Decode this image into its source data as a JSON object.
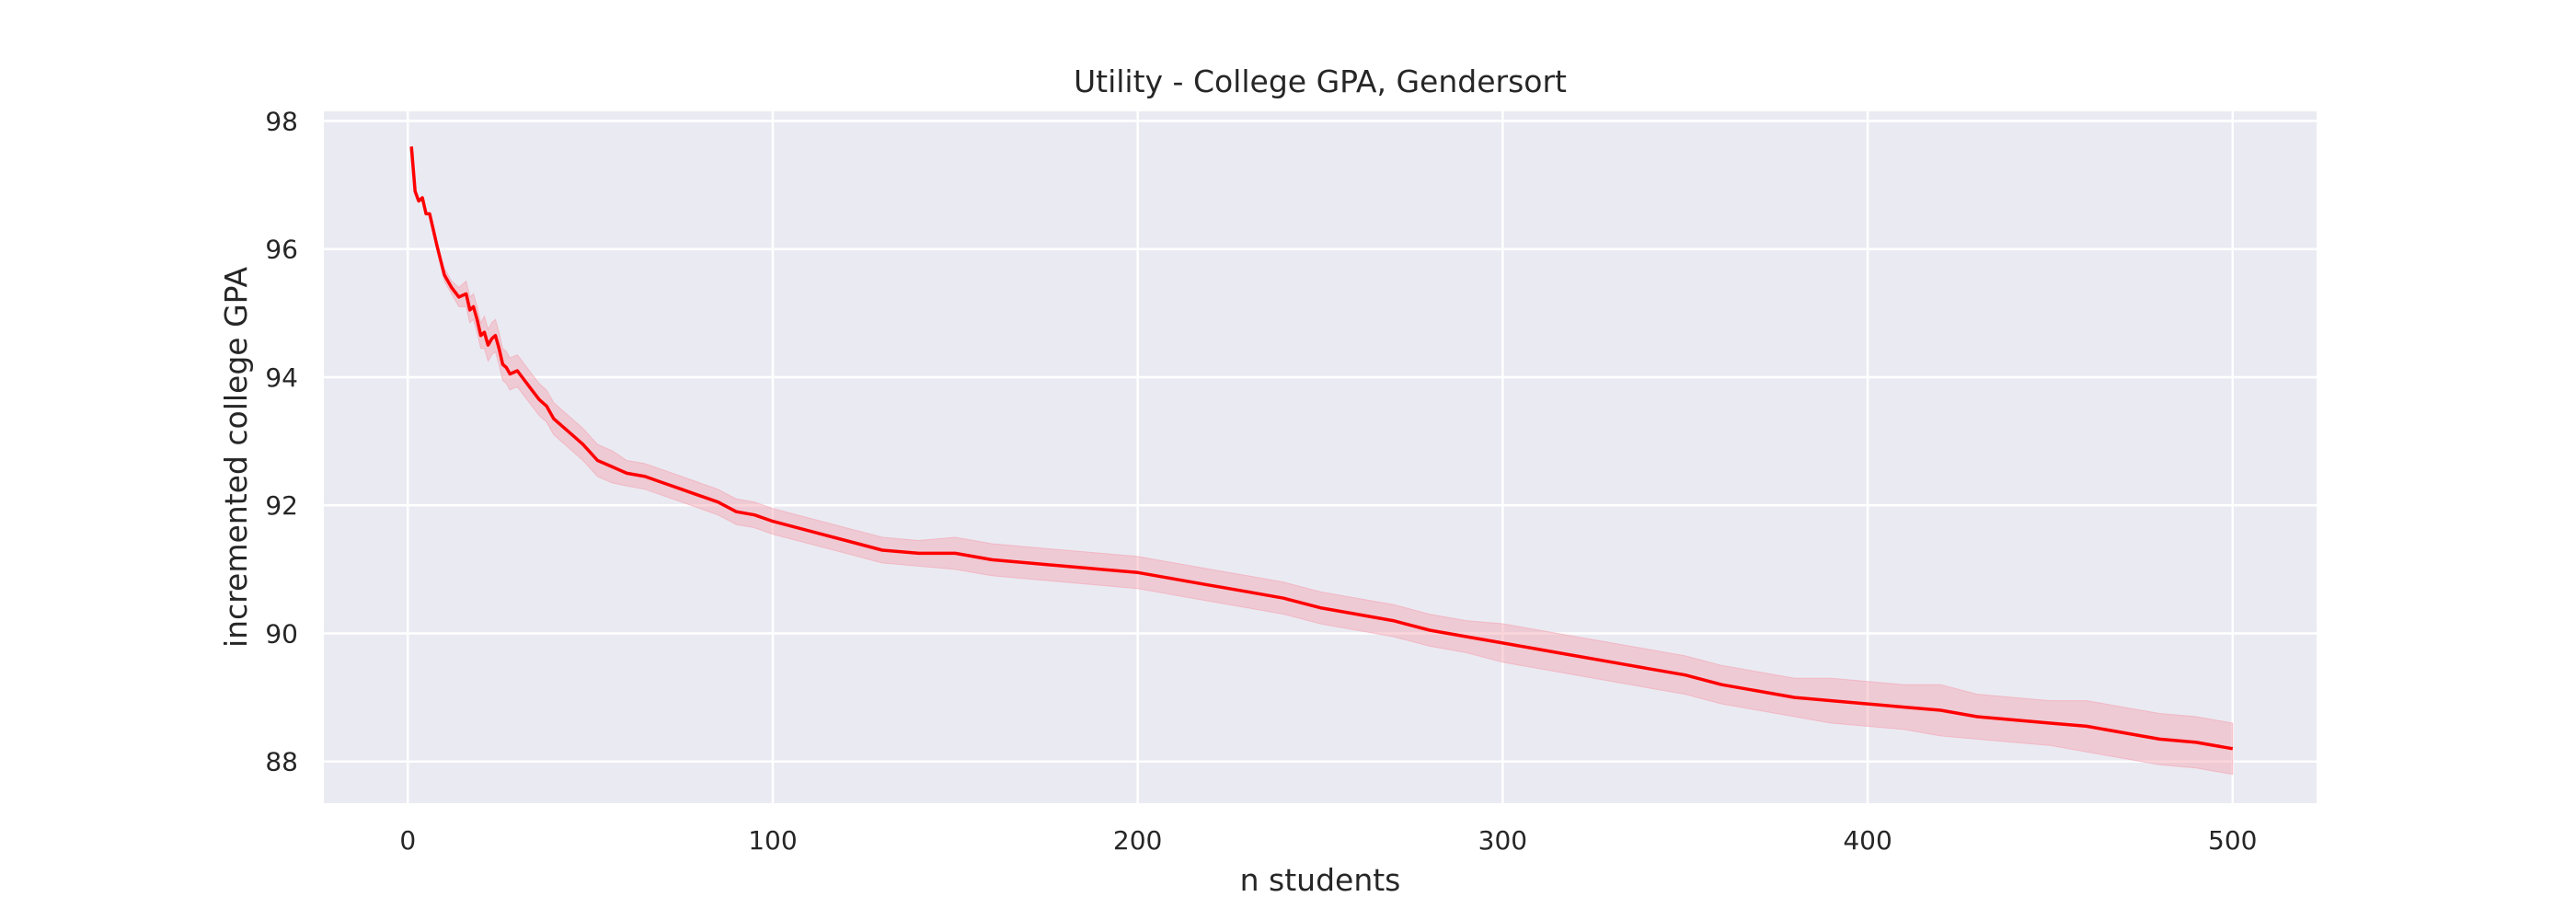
{
  "chart_data": {
    "type": "line",
    "title": "Utility - College GPA, Gendersort",
    "xlabel": "n students",
    "ylabel": "incremented college GPA",
    "xlim": [
      -23,
      523
    ],
    "ylim": [
      87.35,
      98.15
    ],
    "xticks": [
      0,
      100,
      200,
      300,
      400,
      500
    ],
    "yticks": [
      88,
      90,
      92,
      94,
      96,
      98
    ],
    "grid": true,
    "legend": "none",
    "colors": {
      "line": "#ff0000",
      "band": "#f4a3b0",
      "background": "#eaeaf2",
      "grid": "#ffffff"
    },
    "series": [
      {
        "x": [
          1,
          2,
          3,
          4,
          5,
          6,
          7,
          8,
          10,
          12,
          14,
          16,
          17,
          18,
          19,
          20,
          21,
          22,
          23,
          24,
          25,
          26,
          27,
          28,
          30,
          32,
          34,
          36,
          38,
          40,
          42,
          45,
          48,
          52,
          56,
          60,
          65,
          70,
          75,
          80,
          85,
          90,
          95,
          100,
          110,
          120,
          130,
          140,
          150,
          160,
          170,
          180,
          190,
          200,
          210,
          220,
          230,
          240,
          250,
          260,
          270,
          280,
          290,
          300,
          310,
          320,
          330,
          340,
          350,
          360,
          370,
          380,
          390,
          400,
          410,
          420,
          430,
          440,
          450,
          460,
          470,
          480,
          490,
          500
        ],
        "y": [
          97.6,
          96.9,
          96.75,
          96.8,
          96.55,
          96.55,
          96.3,
          96.05,
          95.6,
          95.4,
          95.25,
          95.3,
          95.05,
          95.1,
          94.9,
          94.65,
          94.7,
          94.5,
          94.6,
          94.65,
          94.45,
          94.2,
          94.15,
          94.05,
          94.1,
          93.95,
          93.8,
          93.65,
          93.55,
          93.35,
          93.25,
          93.1,
          92.95,
          92.7,
          92.6,
          92.5,
          92.45,
          92.35,
          92.25,
          92.15,
          92.05,
          91.9,
          91.85,
          91.75,
          91.6,
          91.45,
          91.3,
          91.25,
          91.25,
          91.15,
          91.1,
          91.05,
          91.0,
          90.95,
          90.85,
          90.75,
          90.65,
          90.55,
          90.4,
          90.3,
          90.2,
          90.05,
          89.95,
          89.85,
          89.75,
          89.65,
          89.55,
          89.45,
          89.35,
          89.2,
          89.1,
          89.0,
          88.95,
          88.9,
          88.85,
          88.8,
          88.7,
          88.65,
          88.6,
          88.55,
          88.45,
          88.35,
          88.3,
          88.2
        ],
        "lower": [
          97.6,
          96.9,
          96.75,
          96.8,
          96.55,
          96.55,
          96.3,
          96.05,
          95.5,
          95.3,
          95.1,
          95.1,
          94.85,
          94.9,
          94.7,
          94.45,
          94.45,
          94.25,
          94.35,
          94.4,
          94.2,
          93.95,
          93.9,
          93.8,
          93.85,
          93.7,
          93.55,
          93.4,
          93.3,
          93.1,
          93.0,
          92.85,
          92.7,
          92.45,
          92.35,
          92.3,
          92.25,
          92.15,
          92.05,
          91.95,
          91.85,
          91.7,
          91.65,
          91.55,
          91.4,
          91.25,
          91.1,
          91.05,
          91.0,
          90.9,
          90.85,
          90.8,
          90.75,
          90.7,
          90.6,
          90.5,
          90.4,
          90.3,
          90.15,
          90.05,
          89.95,
          89.8,
          89.7,
          89.55,
          89.45,
          89.35,
          89.25,
          89.15,
          89.05,
          88.9,
          88.8,
          88.7,
          88.6,
          88.55,
          88.5,
          88.4,
          88.35,
          88.3,
          88.25,
          88.15,
          88.05,
          87.95,
          87.9,
          87.8
        ],
        "upper": [
          97.6,
          96.9,
          96.75,
          96.8,
          96.55,
          96.55,
          96.3,
          96.05,
          95.7,
          95.5,
          95.4,
          95.5,
          95.25,
          95.3,
          95.1,
          94.85,
          94.95,
          94.75,
          94.85,
          94.9,
          94.7,
          94.45,
          94.4,
          94.3,
          94.35,
          94.2,
          94.05,
          93.9,
          93.8,
          93.6,
          93.5,
          93.35,
          93.2,
          92.95,
          92.85,
          92.7,
          92.65,
          92.55,
          92.45,
          92.35,
          92.25,
          92.1,
          92.05,
          91.95,
          91.8,
          91.65,
          91.5,
          91.45,
          91.5,
          91.4,
          91.35,
          91.3,
          91.25,
          91.2,
          91.1,
          91.0,
          90.9,
          90.8,
          90.65,
          90.55,
          90.45,
          90.3,
          90.2,
          90.15,
          90.05,
          89.95,
          89.85,
          89.75,
          89.65,
          89.5,
          89.4,
          89.3,
          89.3,
          89.25,
          89.2,
          89.2,
          89.05,
          89.0,
          88.95,
          88.95,
          88.85,
          88.75,
          88.7,
          88.6
        ]
      }
    ]
  }
}
